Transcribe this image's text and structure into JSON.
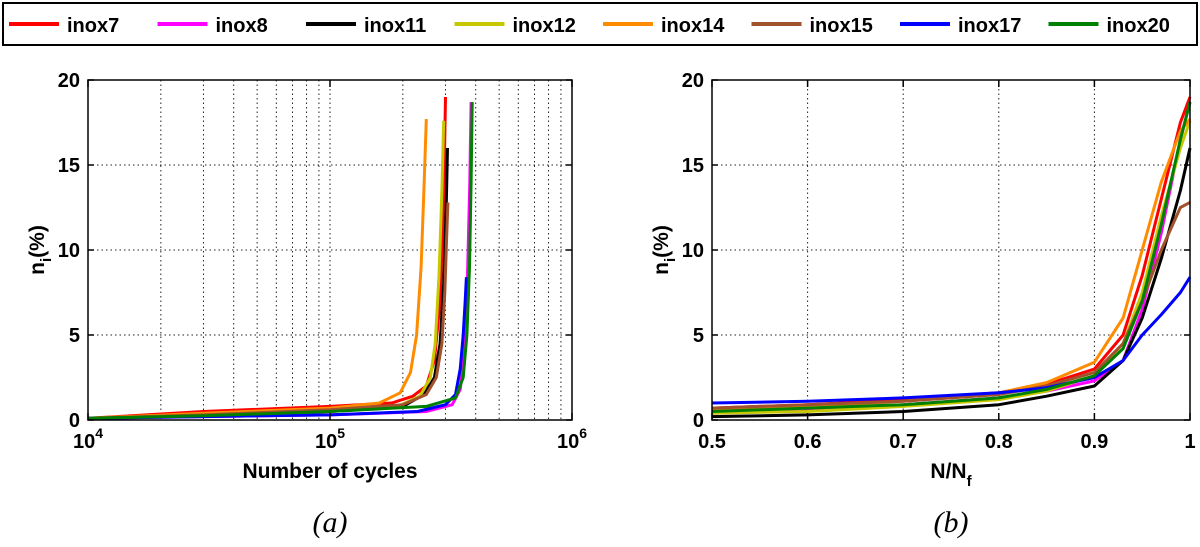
{
  "legend": {
    "entries": [
      {
        "name": "inox7",
        "color": "#ff0000"
      },
      {
        "name": "inox8",
        "color": "#ff00ff"
      },
      {
        "name": "inox11",
        "color": "#000000"
      },
      {
        "name": "inox12",
        "color": "#c8c800"
      },
      {
        "name": "inox14",
        "color": "#ff8c00"
      },
      {
        "name": "inox15",
        "color": "#a0522d"
      },
      {
        "name": "inox17",
        "color": "#0000ff"
      },
      {
        "name": "inox20",
        "color": "#008000"
      }
    ]
  },
  "chart_data": [
    {
      "type": "line",
      "panel": "a",
      "caption": "(a)",
      "xlabel": "Number of cycles",
      "ylabel": {
        "base": "n",
        "sub": "i",
        "suffix": "(%)"
      },
      "xscale": "log",
      "xlim": [
        10000,
        1000000
      ],
      "ylim": [
        0,
        20
      ],
      "yticks": [
        0,
        5,
        10,
        15,
        20
      ],
      "xticks": [
        {
          "value": 10000,
          "base": "10",
          "exp": "4"
        },
        {
          "value": 100000,
          "base": "10",
          "exp": "5"
        },
        {
          "value": 1000000,
          "base": "10",
          "exp": "6"
        }
      ],
      "grid": true,
      "series": [
        {
          "name": "inox7",
          "x": [
            10000,
            30000,
            100000,
            180000,
            220000,
            250000,
            270000,
            285000,
            295000,
            300000
          ],
          "y": [
            0.1,
            0.5,
            0.8,
            1.0,
            1.4,
            2.0,
            3.5,
            7.0,
            13.0,
            19.0
          ]
        },
        {
          "name": "inox8",
          "x": [
            10000,
            30000,
            100000,
            250000,
            320000,
            345000,
            360000,
            370000,
            378000,
            383000
          ],
          "y": [
            0.1,
            0.2,
            0.3,
            0.5,
            0.9,
            1.8,
            4.0,
            8.5,
            14.0,
            18.7
          ]
        },
        {
          "name": "inox11",
          "x": [
            10000,
            30000,
            100000,
            200000,
            245000,
            270000,
            285000,
            295000,
            302000,
            306000
          ],
          "y": [
            0.1,
            0.3,
            0.5,
            0.8,
            1.5,
            2.5,
            4.5,
            8.0,
            12.5,
            16.0
          ]
        },
        {
          "name": "inox12",
          "x": [
            10000,
            30000,
            100000,
            190000,
            235000,
            260000,
            272000,
            282000,
            290000,
            295000
          ],
          "y": [
            0.1,
            0.25,
            0.5,
            0.8,
            1.4,
            2.5,
            4.5,
            8.5,
            13.5,
            17.6
          ]
        },
        {
          "name": "inox14",
          "x": [
            10000,
            30000,
            100000,
            160000,
            195000,
            215000,
            228000,
            238000,
            245000,
            250000
          ],
          "y": [
            0.1,
            0.4,
            0.7,
            1.0,
            1.6,
            2.8,
            5.0,
            9.0,
            14.0,
            17.7
          ]
        },
        {
          "name": "inox15",
          "x": [
            10000,
            30000,
            100000,
            200000,
            250000,
            275000,
            290000,
            298000,
            303000,
            307000
          ],
          "y": [
            0.1,
            0.3,
            0.6,
            0.9,
            1.5,
            2.5,
            4.5,
            7.5,
            10.5,
            12.8
          ]
        },
        {
          "name": "inox17",
          "x": [
            10000,
            30000,
            100000,
            230000,
            300000,
            330000,
            345000,
            355000,
            362000,
            366000
          ],
          "y": [
            0.1,
            0.2,
            0.3,
            0.5,
            0.9,
            1.5,
            3.0,
            5.0,
            7.0,
            8.4
          ]
        },
        {
          "name": "inox20",
          "x": [
            10000,
            30000,
            100000,
            250000,
            330000,
            355000,
            368000,
            377000,
            383000,
            387000
          ],
          "y": [
            0.1,
            0.25,
            0.5,
            0.8,
            1.3,
            2.5,
            5.0,
            9.0,
            14.0,
            18.7
          ]
        }
      ]
    },
    {
      "type": "line",
      "panel": "b",
      "caption": "(b)",
      "xlabel": {
        "base": "N/N",
        "sub": "f"
      },
      "ylabel": {
        "base": "n",
        "sub": "i",
        "suffix": "(%)"
      },
      "xlim": [
        0.5,
        1
      ],
      "ylim": [
        0,
        20
      ],
      "yticks": [
        0,
        5,
        10,
        15,
        20
      ],
      "xticks": [
        {
          "value": 0.5,
          "label": "0.5"
        },
        {
          "value": 0.6,
          "label": "0.6"
        },
        {
          "value": 0.7,
          "label": "0.7"
        },
        {
          "value": 0.8,
          "label": "0.8"
        },
        {
          "value": 0.9,
          "label": "0.9"
        },
        {
          "value": 1.0,
          "label": "1"
        }
      ],
      "grid": true,
      "series": [
        {
          "name": "inox7",
          "x": [
            0.5,
            0.6,
            0.7,
            0.8,
            0.85,
            0.9,
            0.93,
            0.95,
            0.97,
            0.99,
            1.0
          ],
          "y": [
            0.7,
            0.9,
            1.2,
            1.6,
            2.1,
            3.0,
            5.0,
            8.5,
            13.0,
            17.5,
            19.0
          ]
        },
        {
          "name": "inox8",
          "x": [
            0.5,
            0.6,
            0.7,
            0.8,
            0.85,
            0.9,
            0.93,
            0.95,
            0.97,
            0.99,
            1.0
          ],
          "y": [
            0.4,
            0.6,
            0.9,
            1.3,
            1.7,
            2.3,
            3.5,
            6.5,
            11.0,
            16.5,
            18.7
          ]
        },
        {
          "name": "inox11",
          "x": [
            0.5,
            0.6,
            0.7,
            0.8,
            0.85,
            0.9,
            0.93,
            0.95,
            0.97,
            0.99,
            1.0
          ],
          "y": [
            0.2,
            0.3,
            0.5,
            0.9,
            1.4,
            2.0,
            3.5,
            6.0,
            9.5,
            13.5,
            16.0
          ]
        },
        {
          "name": "inox12",
          "x": [
            0.5,
            0.6,
            0.7,
            0.8,
            0.85,
            0.9,
            0.93,
            0.95,
            0.97,
            0.99,
            1.0
          ],
          "y": [
            0.4,
            0.5,
            0.8,
            1.2,
            1.7,
            2.6,
            4.5,
            7.5,
            12.0,
            16.0,
            17.6
          ]
        },
        {
          "name": "inox14",
          "x": [
            0.5,
            0.6,
            0.7,
            0.8,
            0.85,
            0.9,
            0.93,
            0.95,
            0.97,
            0.99,
            1.0
          ],
          "y": [
            0.6,
            0.8,
            1.1,
            1.6,
            2.2,
            3.4,
            6.0,
            10.0,
            14.0,
            17.0,
            17.7
          ]
        },
        {
          "name": "inox15",
          "x": [
            0.5,
            0.6,
            0.7,
            0.8,
            0.85,
            0.9,
            0.93,
            0.95,
            0.97,
            0.99,
            1.0
          ],
          "y": [
            0.7,
            0.9,
            1.1,
            1.5,
            2.0,
            2.8,
            4.5,
            7.0,
            10.0,
            12.5,
            12.8
          ]
        },
        {
          "name": "inox17",
          "x": [
            0.5,
            0.6,
            0.7,
            0.8,
            0.85,
            0.9,
            0.93,
            0.95,
            0.97,
            0.99,
            1.0
          ],
          "y": [
            1.0,
            1.1,
            1.3,
            1.6,
            1.9,
            2.5,
            3.5,
            5.0,
            6.2,
            7.5,
            8.4
          ]
        },
        {
          "name": "inox20",
          "x": [
            0.5,
            0.6,
            0.7,
            0.8,
            0.85,
            0.9,
            0.93,
            0.95,
            0.97,
            0.99,
            1.0
          ],
          "y": [
            0.5,
            0.7,
            0.9,
            1.3,
            1.8,
            2.6,
            4.2,
            7.0,
            11.5,
            16.5,
            18.7
          ]
        }
      ]
    }
  ]
}
